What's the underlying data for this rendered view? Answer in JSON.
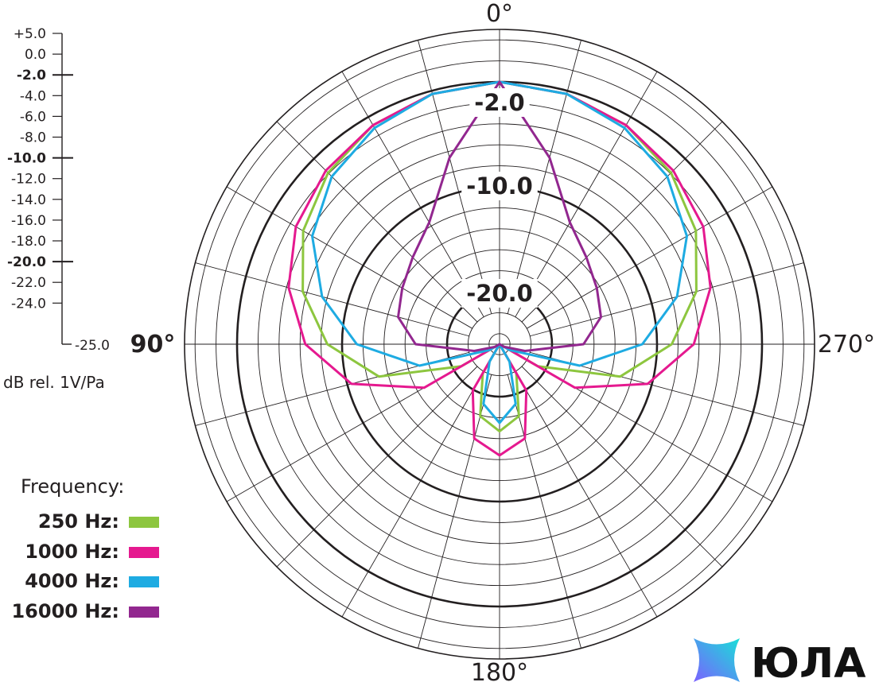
{
  "chart_data": {
    "type": "polar",
    "title": "",
    "rlabel": "dB rel. 1V/Pa",
    "rlim": [
      -25,
      5
    ],
    "grid": true,
    "angle_labels": [
      "0°",
      "90°",
      "180°",
      "270°"
    ],
    "ring_labels": [
      "-2.0",
      "-10.0",
      "-20.0"
    ],
    "scale_ticks": [
      "+5.0",
      "0.0",
      "-2.0",
      "-4.0",
      "-6.0",
      "-8.0",
      "-10.0",
      "-12.0",
      "-14.0",
      "-16.0",
      "-18.0",
      "-20.0",
      "-22.0",
      "-24.0"
    ],
    "scale_min_label": "-25.0",
    "legend_title": "Frequency:",
    "legend_position": "bottom-left",
    "theta": [
      0,
      15,
      30,
      45,
      60,
      75,
      90,
      105,
      120,
      135,
      150,
      165,
      180
    ],
    "series": [
      {
        "name": "250 Hz:",
        "color": "#8dc63f",
        "values": [
          0,
          -0.3,
          -0.9,
          -1.9,
          -3.4,
          -5.6,
          -8.6,
          -13.1,
          -20.8,
          -25,
          -21.8,
          -17.9,
          -16.7
        ]
      },
      {
        "name": "1000 Hz:",
        "color": "#e5198f",
        "values": [
          0,
          -0.3,
          -0.9,
          -1.6,
          -2.6,
          -4.2,
          -6.5,
          -10.4,
          -16.7,
          -25,
          -19.9,
          -15.7,
          -14.4
        ]
      },
      {
        "name": "4000 Hz:",
        "color": "#1eabe2",
        "values": [
          0,
          -0.3,
          -1.2,
          -2.4,
          -4.4,
          -7.5,
          -11.4,
          -17.1,
          -23.9,
          -25,
          -23.1,
          -19.1,
          -17.5
        ]
      },
      {
        "name": "16000 Hz:",
        "color": "#92278f",
        "values": [
          0,
          -6.6,
          -11.6,
          -13.3,
          -14.3,
          -15.0,
          -17.0,
          -22.5,
          -24.5,
          -25,
          -25,
          -25,
          -25
        ]
      }
    ]
  },
  "logo": {
    "text": "ЮЛА",
    "colors": [
      "#7b61ff",
      "#18e0d8"
    ]
  }
}
